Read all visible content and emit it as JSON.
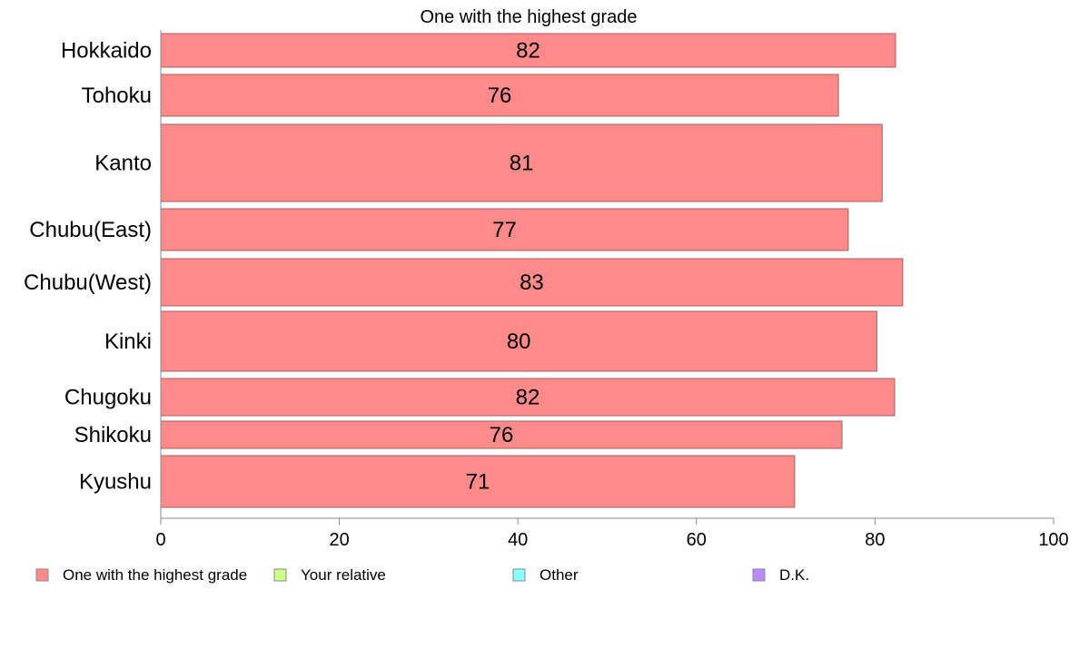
{
  "chart_data": {
    "type": "bar",
    "orientation": "horizontal",
    "title": "One with the highest grade",
    "categories": [
      "Hokkaido",
      "Tohoku",
      "Kanto",
      "Chubu(East)",
      "Chubu(West)",
      "Kinki",
      "Chugoku",
      "Shikoku",
      "Kyushu"
    ],
    "series": [
      {
        "name": "One with the highest grade",
        "values": [
          82.3,
          75.9,
          80.8,
          77.0,
          83.1,
          80.2,
          82.2,
          76.3,
          71.0
        ],
        "labels": [
          "82",
          "76",
          "81",
          "77",
          "83",
          "80",
          "82",
          "76",
          "71"
        ],
        "color": "#ff8a8a"
      },
      {
        "name": "Your relative",
        "values": [
          0,
          0,
          0,
          0,
          0,
          0,
          0,
          0,
          0
        ],
        "color": "#ccff8a"
      },
      {
        "name": "Other",
        "values": [
          0,
          0,
          0,
          0,
          0,
          0,
          0,
          0,
          0
        ],
        "color": "#8affff"
      },
      {
        "name": "D.K.",
        "values": [
          0,
          0,
          0,
          0,
          0,
          0,
          0,
          0,
          0
        ],
        "color": "#bb8aff"
      }
    ],
    "xlim": [
      0,
      100
    ],
    "xticks": [
      0,
      20,
      40,
      60,
      80,
      100
    ],
    "xlabel": "",
    "ylabel": "",
    "grid": false,
    "legend": "bottom",
    "stacked": true
  }
}
